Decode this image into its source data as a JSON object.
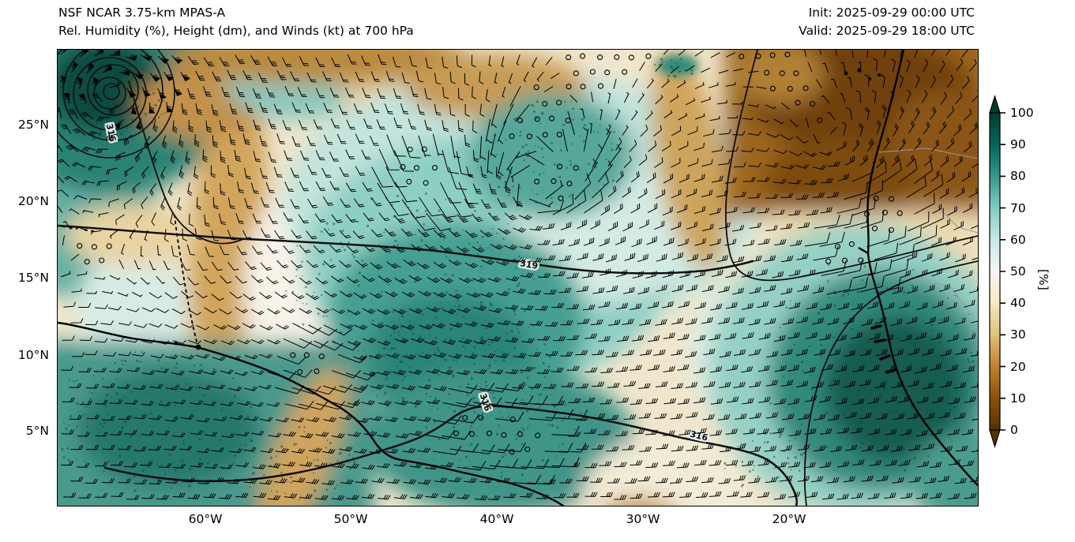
{
  "header": {
    "title_line1": "NSF NCAR 3.75-km MPAS-A",
    "title_line2": "Rel. Humidity (%), Height (dm), and Winds (kt) at 700 hPa",
    "init_time": "Init: 2025-09-29 00:00 UTC",
    "valid_time": "Valid: 2025-09-29 18:00 UTC"
  },
  "map": {
    "y_axis": {
      "ticks": [
        {
          "label": "25°N"
        },
        {
          "label": "20°N"
        },
        {
          "label": "15°N"
        },
        {
          "label": "10°N"
        },
        {
          "label": "5°N"
        }
      ]
    },
    "x_axis": {
      "ticks": [
        {
          "label": "60°W"
        },
        {
          "label": "50°W"
        },
        {
          "label": "40°W"
        },
        {
          "label": "30°W"
        },
        {
          "label": "20°W"
        }
      ]
    },
    "contour_labels": [
      {
        "text": "316"
      },
      {
        "text": "319"
      },
      {
        "text": "316"
      },
      {
        "text": "316"
      }
    ]
  },
  "colorbar": {
    "label": "[%]",
    "ticks": [
      {
        "label": "100"
      },
      {
        "label": "90"
      },
      {
        "label": "80"
      },
      {
        "label": "70"
      },
      {
        "label": "60"
      },
      {
        "label": "50"
      },
      {
        "label": "40"
      },
      {
        "label": "30"
      },
      {
        "label": "20"
      },
      {
        "label": "10"
      },
      {
        "label": "0"
      }
    ],
    "colors": [
      "#543005",
      "#8c510a",
      "#bf812d",
      "#dfc27d",
      "#f6e8c3",
      "#f5f5f5",
      "#c7eae5",
      "#80cdc1",
      "#35978f",
      "#01665e",
      "#003c30"
    ]
  },
  "chart_data": {
    "type": "heatmap",
    "title": "NSF NCAR 3.75-km MPAS-A",
    "subtitle": "Rel. Humidity (%), Height (dm), and Winds (kt) at 700 hPa",
    "init": "2025-09-29 00:00 UTC",
    "valid": "2025-09-29 18:00 UTC",
    "x_ticks": [
      "60°W",
      "50°W",
      "40°W",
      "30°W",
      "20°W"
    ],
    "y_ticks": [
      "25°N",
      "20°N",
      "15°N",
      "10°N",
      "5°N"
    ],
    "colorbar": {
      "label": "[%]",
      "min": 0,
      "max": 100,
      "tick_step": 10,
      "colormap_stops": [
        "#543005",
        "#8c510a",
        "#bf812d",
        "#dfc27d",
        "#f6e8c3",
        "#f5f5f5",
        "#c7eae5",
        "#80cdc1",
        "#35978f",
        "#01665e",
        "#003c30"
      ]
    },
    "height_contour_labels_dm": [
      316,
      319
    ],
    "wind_barb_units": "kt",
    "legend_position": "right"
  }
}
